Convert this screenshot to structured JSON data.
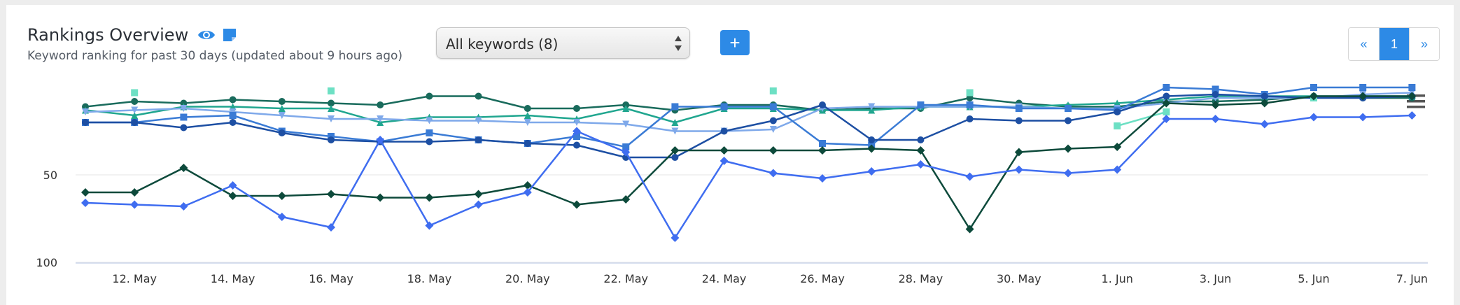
{
  "header": {
    "title": "Rankings Overview",
    "subtitle": "Keyword ranking for past 30 days (updated about 9 hours ago)",
    "icons": [
      "eye-icon",
      "note-icon"
    ]
  },
  "filter": {
    "selected": "All keywords (8)"
  },
  "add_button": {
    "label": "+"
  },
  "pagination": {
    "prev": "«",
    "current": "1",
    "next": "»"
  },
  "menu": {
    "icon": "hamburger-menu-icon"
  },
  "colors": {
    "accent": "#2d8ae6"
  },
  "chart_data": {
    "type": "line",
    "y_axis": {
      "reversed": true,
      "ticks": [
        50,
        100
      ],
      "range": [
        1,
        100
      ]
    },
    "x_tick_labels": [
      "12. May",
      "14. May",
      "16. May",
      "18. May",
      "20. May",
      "22. May",
      "24. May",
      "26. May",
      "28. May",
      "30. May",
      "1. Jun",
      "3. Jun",
      "5. Jun",
      "7. Jun"
    ],
    "x_days": [
      "11. May",
      "12. May",
      "13. May",
      "14. May",
      "15. May",
      "16. May",
      "17. May",
      "18. May",
      "19. May",
      "20. May",
      "21. May",
      "22. May",
      "23. May",
      "24. May",
      "25. May",
      "26. May",
      "27. May",
      "28. May",
      "29. May",
      "30. May",
      "31. May",
      "1. Jun",
      "2. Jun",
      "3. Jun",
      "4. Jun",
      "5. Jun",
      "6. Jun",
      "7. Jun"
    ],
    "grid": true,
    "series": [
      {
        "color": "#196b5c",
        "marker": "circle",
        "values": [
          11,
          8,
          9,
          7,
          8,
          9,
          10,
          5,
          5,
          12,
          12,
          10,
          13,
          10,
          10,
          13,
          12,
          12,
          6,
          9,
          11,
          11,
          8,
          8,
          7,
          5,
          6,
          6
        ]
      },
      {
        "color": "#20a68f",
        "marker": "triangle",
        "values": [
          13,
          16,
          11,
          11,
          12,
          12,
          20,
          17,
          17,
          16,
          18,
          12,
          20,
          12,
          12,
          13,
          13,
          11,
          11,
          11,
          10,
          9,
          7,
          5,
          5,
          5,
          5,
          5
        ]
      },
      {
        "color": "#7fa9ea",
        "marker": "triangle-down",
        "values": [
          14,
          13,
          12,
          14,
          16,
          18,
          18,
          19,
          19,
          20,
          20,
          21,
          25,
          25,
          24,
          12,
          11,
          11,
          11,
          11,
          12,
          12,
          9,
          6,
          6,
          6,
          4,
          3
        ]
      },
      {
        "color": "#3a7bd5",
        "marker": "square",
        "values": [
          20,
          20,
          17,
          16,
          25,
          28,
          31,
          26,
          30,
          32,
          28,
          34,
          11,
          11,
          11,
          32,
          33,
          10,
          10,
          12,
          12,
          13,
          0,
          1,
          4,
          0,
          0,
          0
        ]
      },
      {
        "color": "#1d4fa3",
        "marker": "circle",
        "values": [
          20,
          20,
          23,
          20,
          26,
          30,
          31,
          31,
          30,
          32,
          33,
          40,
          40,
          25,
          19,
          10,
          30,
          30,
          18,
          19,
          19,
          14,
          5,
          4,
          5,
          6,
          6,
          5
        ]
      },
      {
        "color": "#6de0c4",
        "marker": "square",
        "values": [
          null,
          3,
          null,
          null,
          null,
          2,
          null,
          null,
          null,
          null,
          null,
          null,
          null,
          null,
          2,
          null,
          null,
          null,
          3,
          null,
          null,
          22,
          14,
          null,
          null,
          6,
          null,
          null
        ]
      },
      {
        "color": "#0d4a3b",
        "marker": "diamond",
        "values": [
          60,
          60,
          46,
          62,
          62,
          61,
          63,
          63,
          61,
          56,
          67,
          64,
          36,
          36,
          36,
          36,
          35,
          36,
          81,
          37,
          35,
          34,
          9,
          10,
          9,
          5,
          5,
          5
        ]
      },
      {
        "color": "#3f6df0",
        "marker": "diamond",
        "values": [
          66,
          67,
          68,
          56,
          74,
          80,
          30,
          79,
          67,
          60,
          25,
          37,
          86,
          42,
          49,
          52,
          48,
          44,
          51,
          47,
          49,
          47,
          18,
          18,
          21,
          17,
          17,
          16
        ]
      }
    ]
  }
}
